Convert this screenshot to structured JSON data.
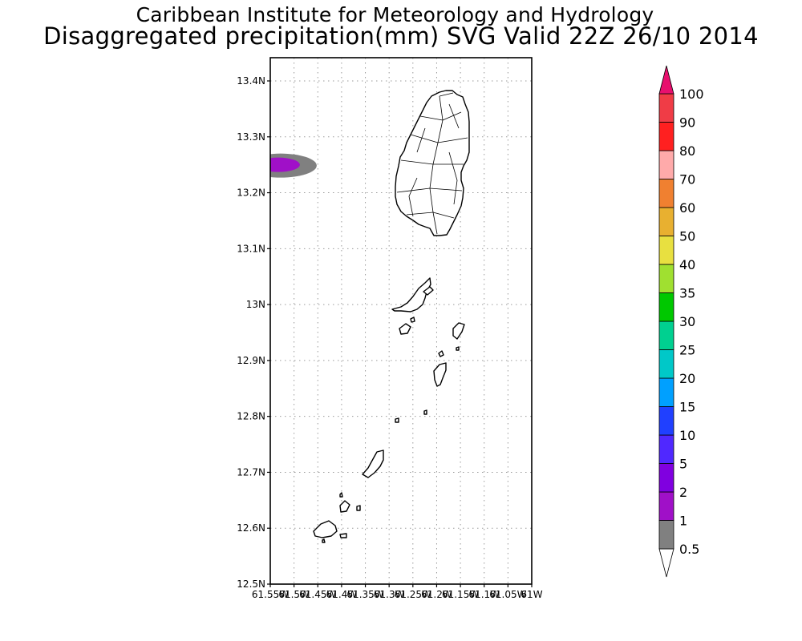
{
  "titles": {
    "line1": "Caribbean Institute for Meteorology and Hydrology",
    "line2": "Disaggregated precipitation(mm) SVG Valid 22Z 26/10 2014"
  },
  "map": {
    "lat_range": [
      12.5,
      13.4
    ],
    "lon_range": [
      -61.55,
      -61.0
    ],
    "lat_ticks": [
      {
        "value": 13.4,
        "label": "13.4N"
      },
      {
        "value": 13.3,
        "label": "13.3N"
      },
      {
        "value": 13.2,
        "label": "13.2N"
      },
      {
        "value": 13.1,
        "label": "13.1N"
      },
      {
        "value": 13.0,
        "label": "13N"
      },
      {
        "value": 12.9,
        "label": "12.9N"
      },
      {
        "value": 12.8,
        "label": "12.8N"
      },
      {
        "value": 12.7,
        "label": "12.7N"
      },
      {
        "value": 12.6,
        "label": "12.6N"
      },
      {
        "value": 12.5,
        "label": "12.5N"
      }
    ],
    "lon_ticks": [
      {
        "value": -61.55,
        "label": "61.55W"
      },
      {
        "value": -61.5,
        "label": "61.5W"
      },
      {
        "value": -61.45,
        "label": "61.45W"
      },
      {
        "value": -61.4,
        "label": "61.4W"
      },
      {
        "value": -61.35,
        "label": "61.35W"
      },
      {
        "value": -61.3,
        "label": "61.3W"
      },
      {
        "value": -61.25,
        "label": "61.25W"
      },
      {
        "value": -61.2,
        "label": "61.2W"
      },
      {
        "value": -61.15,
        "label": "61.15W"
      },
      {
        "value": -61.1,
        "label": "61.1W"
      },
      {
        "value": -61.05,
        "label": "61.05W"
      },
      {
        "value": -61.0,
        "label": "61W"
      }
    ],
    "grid": true,
    "precip_cell": {
      "lat": 13.25,
      "lon": -61.535,
      "levels": [
        "0.5",
        "2"
      ]
    }
  },
  "colorbar": {
    "labels": [
      "0.5",
      "1",
      "2",
      "5",
      "10",
      "15",
      "20",
      "25",
      "30",
      "35",
      "40",
      "50",
      "60",
      "70",
      "80",
      "90",
      "100"
    ],
    "colors": [
      "#ffffff",
      "#808080",
      "#a010c8",
      "#8000e0",
      "#5028ff",
      "#2040ff",
      "#00a0ff",
      "#00c8c8",
      "#00d090",
      "#00c800",
      "#a0e030",
      "#e8e040",
      "#e8b030",
      "#f08030",
      "#ffaaaa",
      "#ff2020",
      "#f03c46",
      "#e8106e"
    ],
    "units": "mm"
  }
}
